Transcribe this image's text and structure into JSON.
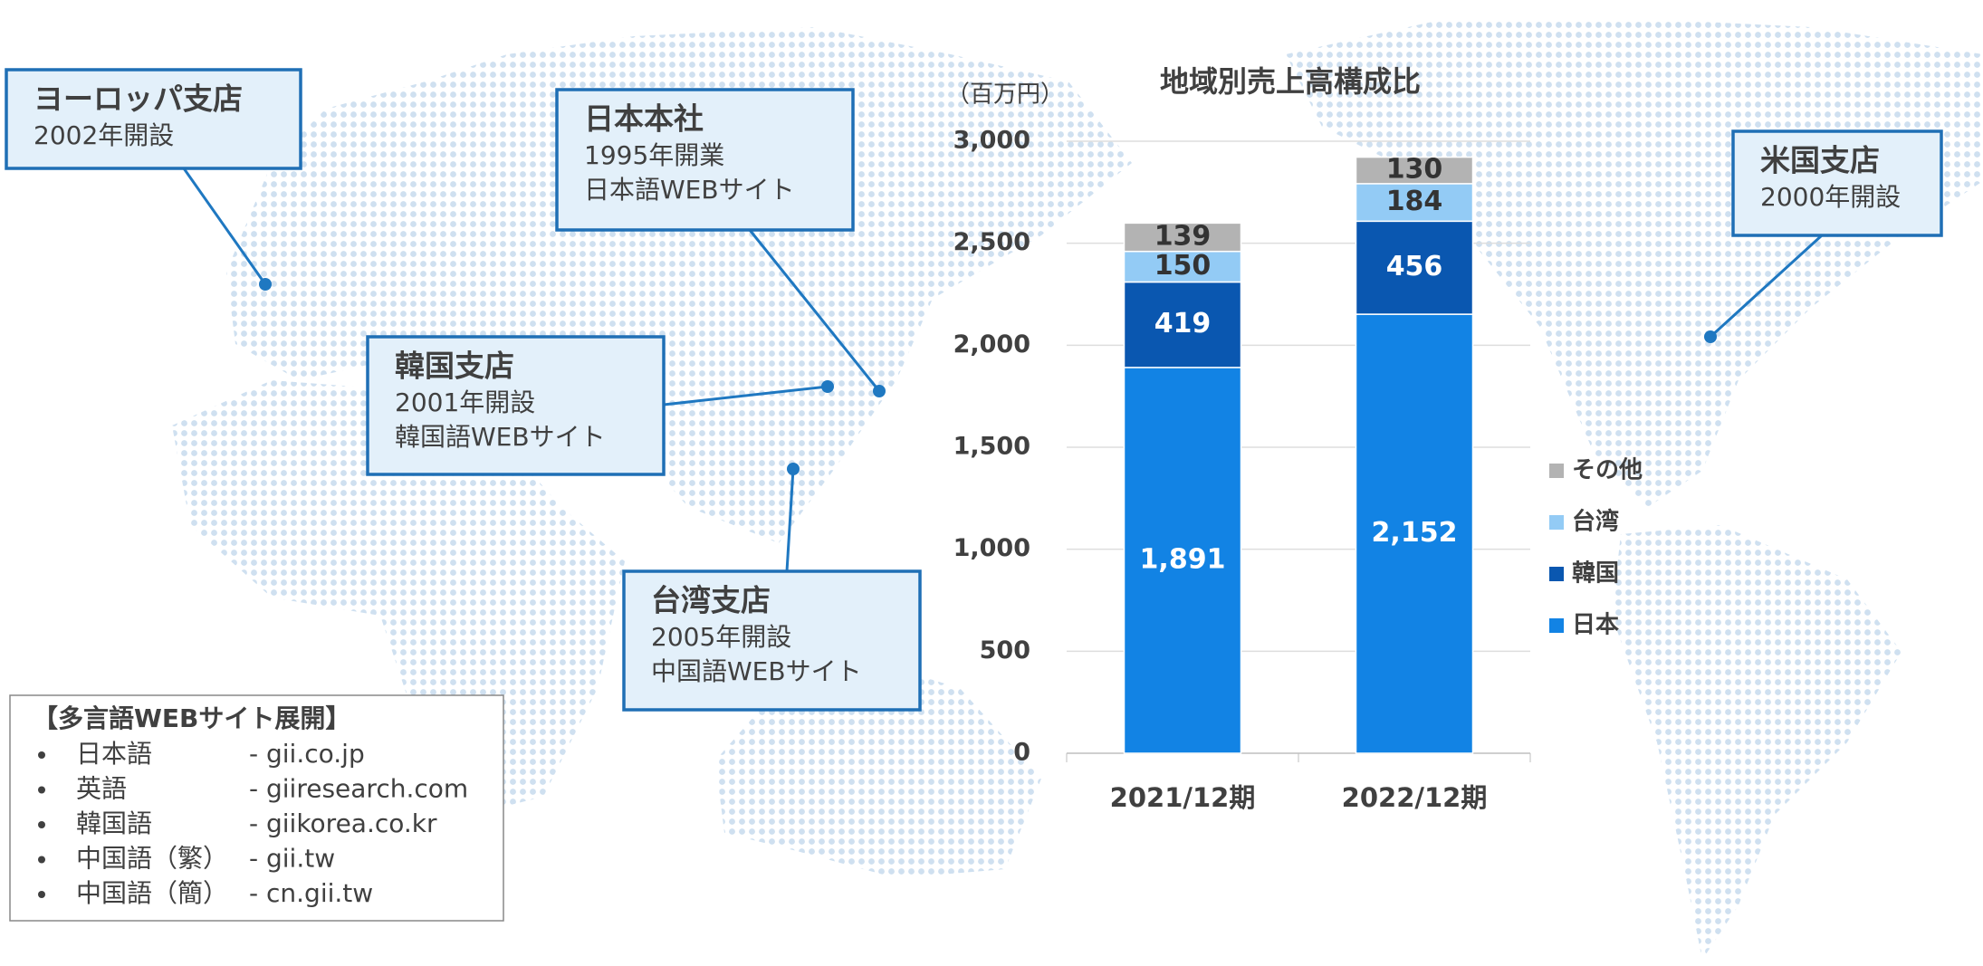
{
  "chart_data": {
    "type": "stacked_bar",
    "title": "地域別売上高構成比",
    "unit_label": "（百万円）",
    "categories": [
      "2021/12期",
      "2022/12期"
    ],
    "series": [
      {
        "name": "日本",
        "color": "#1283e4",
        "values": [
          1891,
          2152
        ],
        "value_labels": [
          "1,891",
          "2,152"
        ]
      },
      {
        "name": "韓国",
        "color": "#0a57b0",
        "values": [
          419,
          456
        ]
      },
      {
        "name": "台湾",
        "color": "#93cbf5",
        "values": [
          150,
          184
        ]
      },
      {
        "name": "その他",
        "color": "#b3b3b3",
        "values": [
          139,
          130
        ]
      }
    ],
    "ylim": [
      0,
      3000
    ],
    "yticks": [
      0,
      500,
      {
        "value": 1000,
        "label": "1,000"
      },
      {
        "value": 1500,
        "label": "1,500"
      },
      {
        "value": 2000,
        "label": "2,000"
      },
      {
        "value": 2500,
        "label": "2,500"
      },
      {
        "value": 3000,
        "label": "3,000"
      }
    ],
    "grid": true,
    "legend": "right"
  },
  "callouts": [
    {
      "title": "ヨーロッパ支店",
      "lines": [
        "2002年開設"
      ]
    },
    {
      "title": "日本本社",
      "lines": [
        "1995年開業",
        "日本語WEBサイト"
      ]
    },
    {
      "title": "韓国支店",
      "lines": [
        "2001年開設",
        "韓国語WEBサイト"
      ]
    },
    {
      "title": "台湾支店",
      "lines": [
        "2005年開設",
        "中国語WEBサイト"
      ]
    },
    {
      "title": "米国支店",
      "lines": [
        "2000年開設"
      ]
    }
  ],
  "websites": {
    "heading": "【多言語WEBサイト展開】",
    "items": [
      {
        "language": "日本語",
        "url": "- gii.co.jp"
      },
      {
        "language": "英語",
        "url": "- giiresearch.com"
      },
      {
        "language": "韓国語",
        "url": "- giikorea.co.kr"
      },
      {
        "language": "中国語（繁）",
        "url": "- gii.tw"
      },
      {
        "language": "中国語（簡）",
        "url": "- cn.gii.tw"
      }
    ]
  }
}
